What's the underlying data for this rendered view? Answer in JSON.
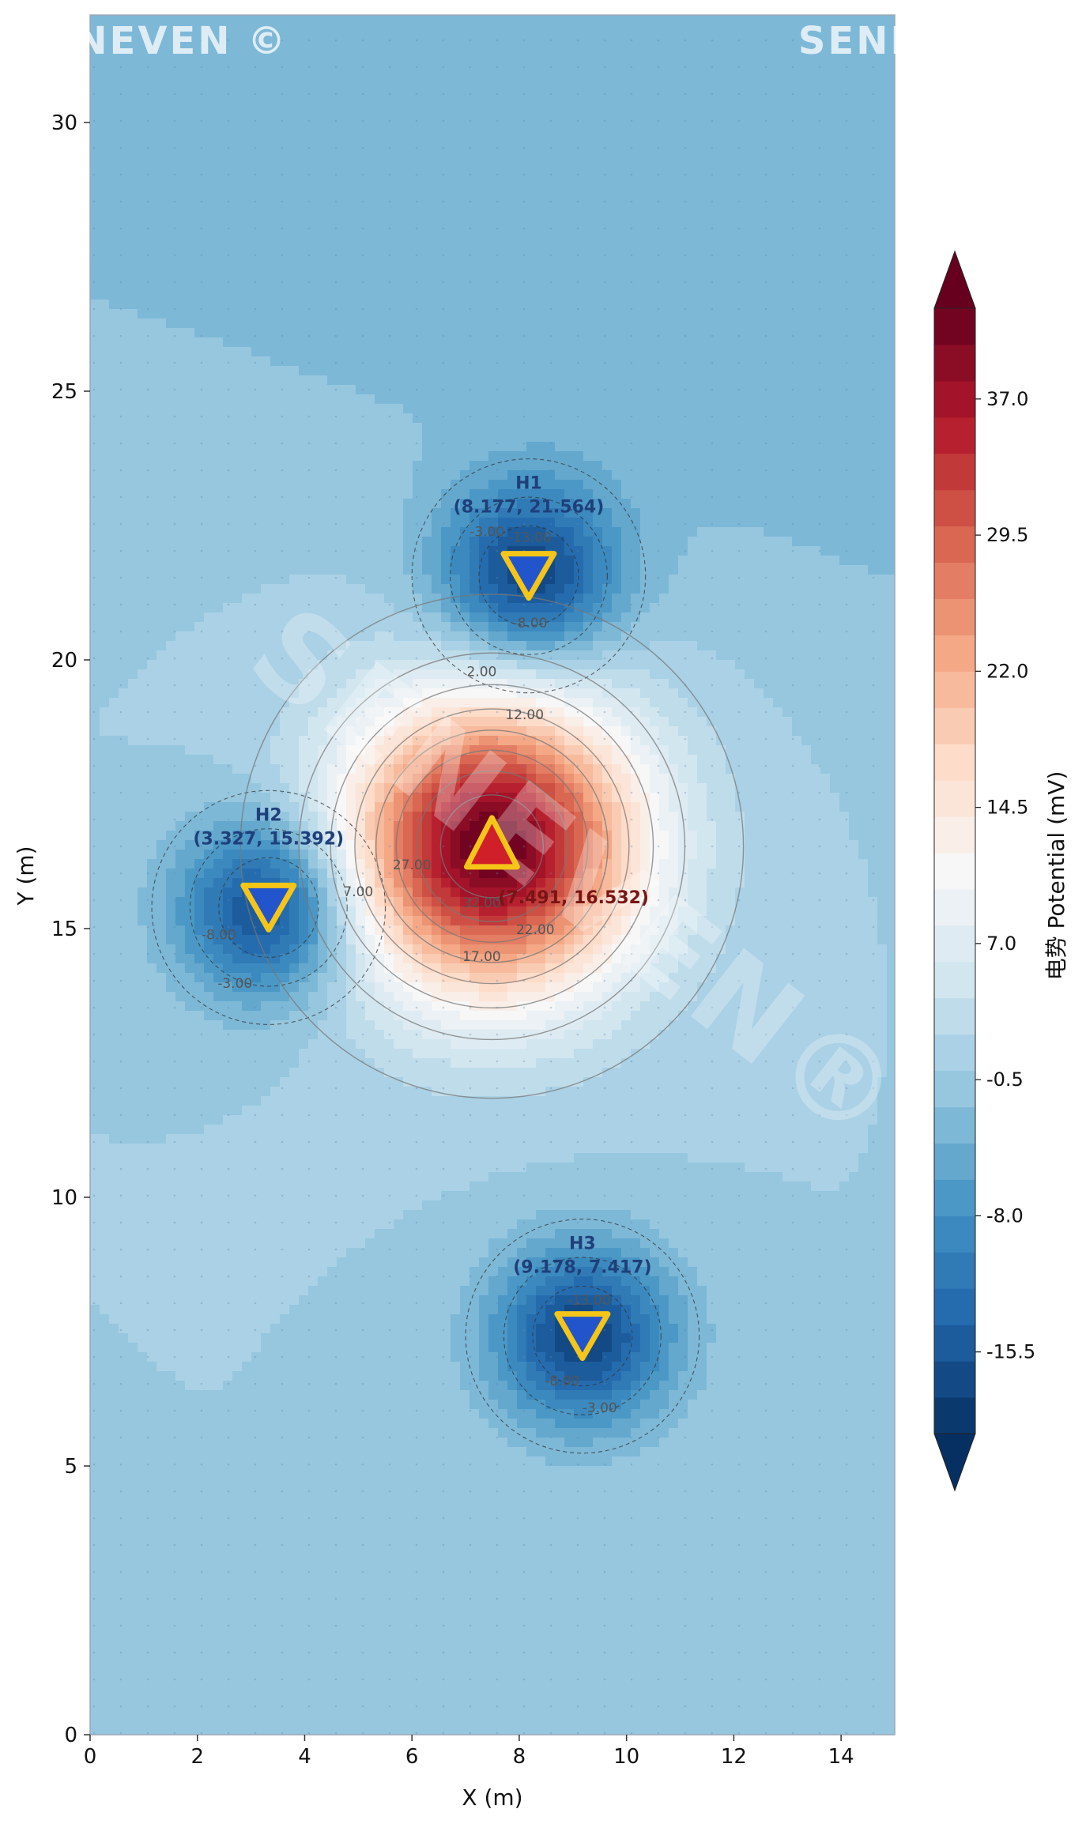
{
  "watermarks": {
    "corner_text": "SENEVEN ©",
    "diagonal_text": "SENEVEN®"
  },
  "chart_data": {
    "type": "heatmap",
    "subtype": "filled-contour",
    "title": "",
    "xlabel": "X (m)",
    "ylabel": "Y (m)",
    "xlim": [
      0,
      15
    ],
    "ylim": [
      0,
      32
    ],
    "x_ticks": [
      0,
      2,
      4,
      6,
      8,
      10,
      12,
      14
    ],
    "y_ticks": [
      0,
      5,
      10,
      15,
      20,
      25,
      30
    ],
    "grid": "dotted background",
    "colorbar": {
      "label": "电势 Potential (mV)",
      "colormap": "RdBu_r",
      "range": [
        -20,
        42
      ],
      "extend": "both",
      "ticks": [
        -15.5,
        -8.0,
        -0.5,
        7.0,
        14.5,
        22.0,
        29.5,
        37.0
      ],
      "tick_labels": [
        "-15.5",
        "-8.0",
        "-0.5",
        "7.0",
        "14.5",
        "22.0",
        "29.5",
        "37.0"
      ]
    },
    "background_potential": 0,
    "sources": [
      {
        "label": "H1",
        "kind": "sink",
        "x": 8.177,
        "y": 21.564,
        "coord_text": "(8.177, 21.564)",
        "potential": -18,
        "color": "#1f3f7a"
      },
      {
        "label": "H2",
        "kind": "sink",
        "x": 3.327,
        "y": 15.392,
        "coord_text": "(3.327, 15.392)",
        "potential": -18,
        "color": "#1f3f7a"
      },
      {
        "label": "H3",
        "kind": "sink",
        "x": 9.178,
        "y": 7.417,
        "coord_text": "(9.178, 7.417)",
        "potential": -18,
        "color": "#1f3f7a"
      },
      {
        "label": "",
        "kind": "source",
        "x": 7.491,
        "y": 16.532,
        "coord_text": "(7.491, 16.532)",
        "potential": 42,
        "color": "#7a1414"
      }
    ],
    "contour_labels": [
      {
        "text": "2.00",
        "x": 7.3,
        "y": 19.7
      },
      {
        "text": "12.00",
        "x": 8.1,
        "y": 18.9
      },
      {
        "text": "7.00",
        "x": 5.0,
        "y": 15.6
      },
      {
        "text": "27.00",
        "x": 6.0,
        "y": 16.1
      },
      {
        "text": "32.00",
        "x": 7.3,
        "y": 15.4
      },
      {
        "text": "22.00",
        "x": 8.3,
        "y": 14.9
      },
      {
        "text": "17.00",
        "x": 7.3,
        "y": 14.4
      },
      {
        "text": "-3.00",
        "x": 7.4,
        "y": 22.3
      },
      {
        "text": "-13.00",
        "x": 8.2,
        "y": 22.2
      },
      {
        "text": "-8.00",
        "x": 8.2,
        "y": 20.6
      },
      {
        "text": "-8.00",
        "x": 2.4,
        "y": 14.8
      },
      {
        "text": "-3.00",
        "x": 2.7,
        "y": 13.9
      },
      {
        "text": "-13.00",
        "x": 9.3,
        "y": 8.0
      },
      {
        "text": "-8.00",
        "x": 8.8,
        "y": 6.5
      },
      {
        "text": "-3.00",
        "x": 9.5,
        "y": 6.0
      }
    ]
  }
}
